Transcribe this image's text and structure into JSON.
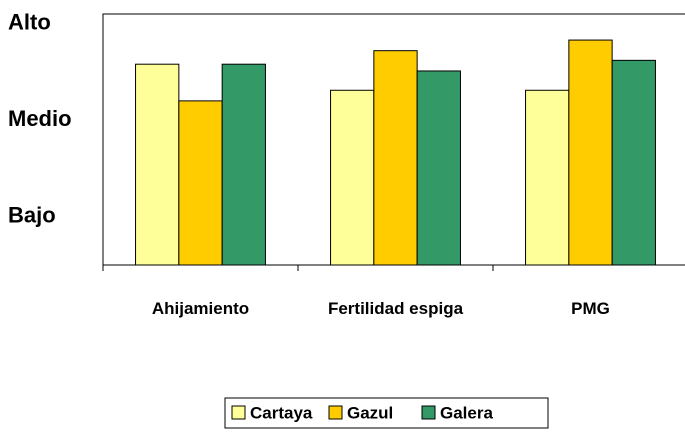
{
  "chart_data": {
    "type": "bar",
    "categories": [
      "Ahijamiento",
      "Fertilidad espiga",
      "PMG"
    ],
    "series": [
      {
        "name": "Cartaya",
        "color": "#ffff99",
        "values": [
          2.08,
          1.81,
          1.81
        ]
      },
      {
        "name": "Gazul",
        "color": "#ffcc00",
        "values": [
          1.7,
          2.22,
          2.33
        ]
      },
      {
        "name": "Galera",
        "color": "#339966",
        "values": [
          2.08,
          2.01,
          2.12
        ]
      }
    ],
    "ylim": [
      0,
      2.6
    ],
    "yticks": [
      {
        "value": 0.5,
        "label": "Bajo"
      },
      {
        "value": 1.5,
        "label": "Medio"
      },
      {
        "value": 2.5,
        "label": "Alto"
      }
    ],
    "legend": "bottom"
  }
}
